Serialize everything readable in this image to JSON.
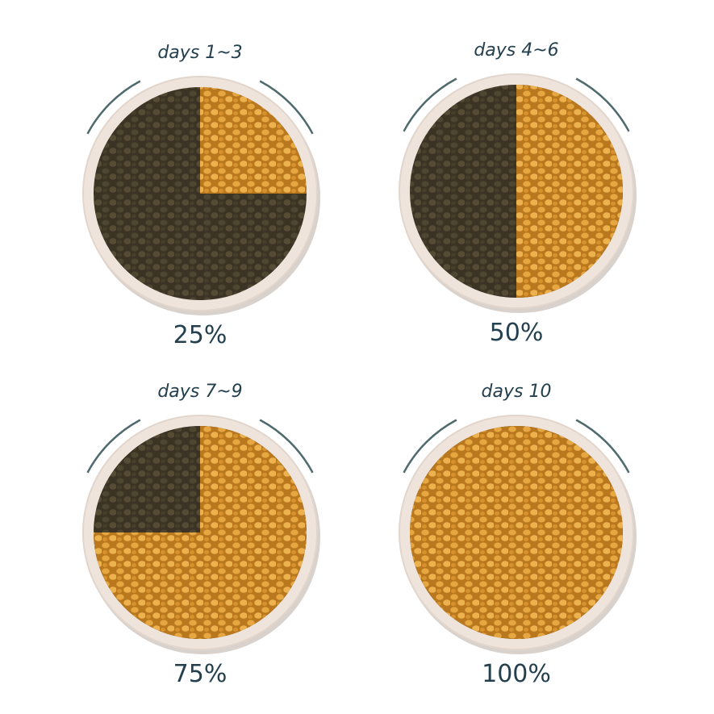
{
  "panels": [
    {
      "period": "days 1~3",
      "value": 25,
      "value_label": "25%"
    },
    {
      "period": "days 4~6",
      "value": 50,
      "value_label": "50%"
    },
    {
      "period": "days 7~9",
      "value": 75,
      "value_label": "75%"
    },
    {
      "period": "days 10",
      "value": 100,
      "value_label": "100%"
    }
  ]
}
